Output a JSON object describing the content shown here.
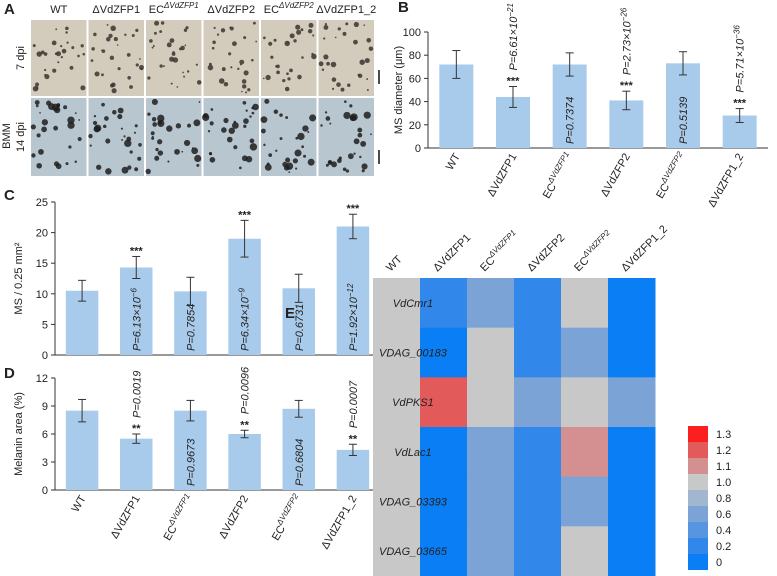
{
  "panel_a": {
    "label": "A",
    "columns": [
      "WT",
      "ΔVdZFP1",
      "EC",
      "ΔVdZFP2",
      "EC",
      "ΔVdZFP1_2"
    ],
    "column_superscripts": [
      null,
      null,
      "ΔVdZFP1",
      null,
      "ΔVdZFP2",
      null
    ],
    "rows": [
      "7 dpi",
      "14 dpi"
    ],
    "medium": "BMM"
  },
  "chart_data": [
    {
      "type": "bar",
      "label": "B",
      "ylabel": "MS diameter (μm)",
      "categories": [
        "WT",
        "ΔVdZFP1",
        "EC",
        "ΔVdZFP2",
        "EC",
        "ΔVdZFP1_2"
      ],
      "category_superscripts": [
        null,
        null,
        "ΔVdZFP1",
        null,
        "ΔVdZFP2",
        null
      ],
      "values": [
        72,
        44,
        72,
        41,
        73,
        28
      ],
      "errors": [
        12,
        9,
        10,
        8,
        10,
        6
      ],
      "color": "#a9cbeb",
      "p_labels": [
        null,
        {
          "text": "P=6.61×10",
          "exp": "−21"
        },
        {
          "text": "P=0.7374"
        },
        {
          "text": "P=2.73×10",
          "exp": "−26"
        },
        {
          "text": "P=0.5139"
        },
        {
          "text": "P=5.71×10",
          "exp": "−36"
        }
      ],
      "stars": [
        null,
        "***",
        null,
        "***",
        null,
        "***"
      ],
      "ylim": [
        0,
        100
      ],
      "yticks": [
        0,
        20,
        40,
        60,
        80,
        100
      ]
    },
    {
      "type": "bar",
      "label": "C",
      "ylabel": "MS / 0.25 mm²",
      "categories": [
        "WT",
        "ΔVdZFP1",
        "EC",
        "ΔVdZFP2",
        "EC",
        "ΔVdZFP1_2"
      ],
      "values": [
        10.5,
        14.3,
        10.4,
        19,
        10.9,
        21
      ],
      "errors": [
        1.7,
        1.8,
        2.3,
        3,
        2.3,
        2
      ],
      "color": "#a9cbeb",
      "p_labels": [
        null,
        {
          "text": "P=6.13×10",
          "exp": "−6"
        },
        {
          "text": "P=0.7854"
        },
        {
          "text": "P=6.34×10",
          "exp": "−9"
        },
        {
          "text": "P=0.6731"
        },
        {
          "text": "P=1.92×10",
          "exp": "−12"
        }
      ],
      "stars": [
        null,
        "***",
        null,
        "***",
        null,
        "***"
      ],
      "ylim": [
        0,
        25
      ],
      "yticks": [
        0,
        5,
        10,
        15,
        20,
        25
      ]
    },
    {
      "type": "bar",
      "label": "D",
      "ylabel": "Melanin area (%)",
      "categories": [
        "WT",
        "ΔVdZFP1",
        "EC",
        "ΔVdZFP2",
        "EC",
        "ΔVdZFP1_2"
      ],
      "category_superscripts": [
        null,
        null,
        "ΔVdZFP1",
        null,
        "ΔVdZFP2",
        null
      ],
      "values": [
        8.5,
        5.5,
        8.5,
        6.0,
        8.7,
        4.3
      ],
      "errors": [
        1.2,
        0.5,
        1.1,
        0.4,
        0.9,
        0.6
      ],
      "color": "#a9cbeb",
      "p_labels": [
        null,
        {
          "text": "P=0.0019"
        },
        {
          "text": "P=0.9673"
        },
        {
          "text": "P=0.0096"
        },
        {
          "text": "P=0.6804"
        },
        {
          "text": "P=0.0007"
        }
      ],
      "stars": [
        null,
        "**",
        null,
        "**",
        null,
        "**"
      ],
      "ylim": [
        0,
        12
      ],
      "yticks": [
        0,
        3,
        6,
        9,
        12
      ]
    },
    {
      "type": "heatmap",
      "label": "E",
      "columns": [
        "WT",
        "ΔVdZFP1",
        "EC",
        "ΔVdZFP2",
        "EC",
        "ΔVdZFP1_2"
      ],
      "column_superscripts": [
        null,
        null,
        "ΔVdZFP1",
        null,
        "ΔVdZFP2",
        null
      ],
      "rows": [
        "VdCmr1",
        "VDAG_00183",
        "VdPKS1",
        "VdLac1",
        "VDAG_03393",
        "VDAG_03665"
      ],
      "values": [
        [
          1,
          0.3,
          0.6,
          0.3,
          1,
          0
        ],
        [
          1,
          0,
          1,
          0.3,
          0.7,
          0
        ],
        [
          1,
          1.2,
          1,
          0.7,
          1,
          0.6
        ],
        [
          1,
          0,
          0.7,
          0.3,
          1.1,
          0
        ],
        [
          1,
          0,
          0.7,
          0.2,
          0.7,
          0
        ],
        [
          1,
          0,
          0.7,
          0.2,
          1,
          0
        ]
      ],
      "colorbar_ticks": [
        0,
        0.2,
        0.4,
        0.6,
        0.8,
        {
          "value": 1,
          "label": "1.0"
        },
        1.1,
        1.2,
        1.3
      ],
      "colorbar_colors": [
        "#0a7ff5",
        "#3288ea",
        "#5795e0",
        "#7ba3d6",
        "#a2b6cf",
        "#c8c8c8",
        "#d49090",
        "#e25a5a",
        "#fb1f1f"
      ]
    }
  ]
}
